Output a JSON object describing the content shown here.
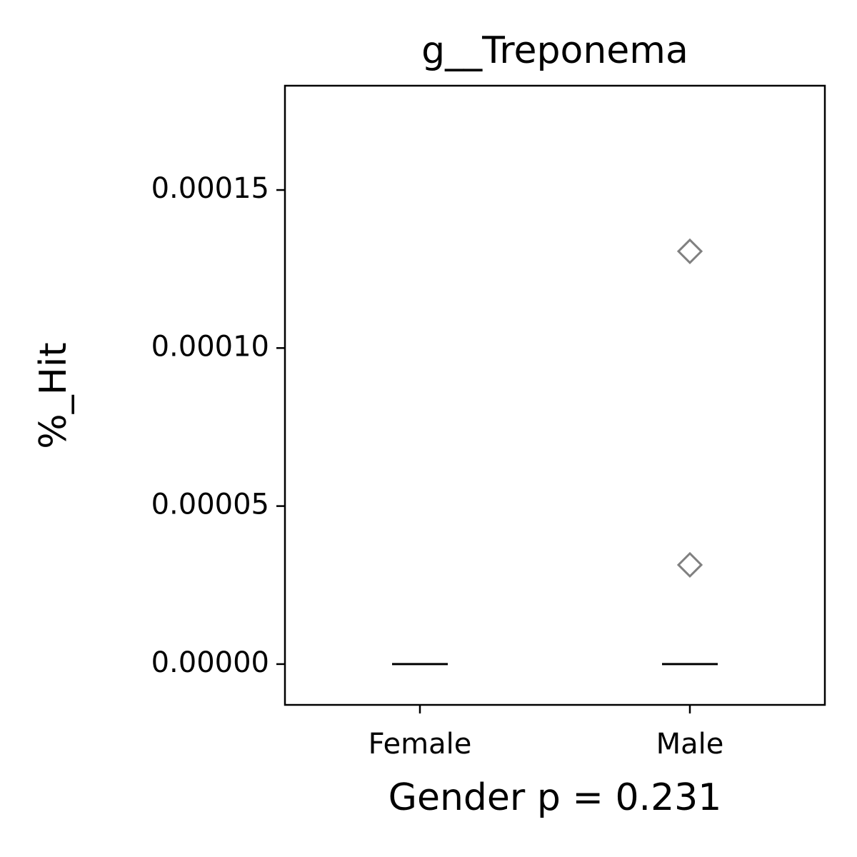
{
  "chart_data": {
    "type": "box",
    "title": "g__Treponema",
    "xlabel": "Gender p = 0.231",
    "ylabel": "%_Hit",
    "categories": [
      "Female",
      "Male"
    ],
    "boxes": [
      {
        "min": 0,
        "q1": 0,
        "median": 0,
        "q3": 0,
        "max": 0,
        "outliers": []
      },
      {
        "min": 0,
        "q1": 0,
        "median": 0,
        "q3": 0,
        "max": 0,
        "outliers": [
          0.0001306,
          3.14e-05
        ]
      }
    ],
    "color": "#000000",
    "outlier_color": "#808080",
    "ylim": [
      -1.29e-05,
      0.000183
    ],
    "yticks": [
      {
        "value": 0,
        "label": "0.00000"
      },
      5e-05,
      {
        "value": 0.0001,
        "label": "0.00010"
      },
      0.00015
    ],
    "grid": false
  }
}
